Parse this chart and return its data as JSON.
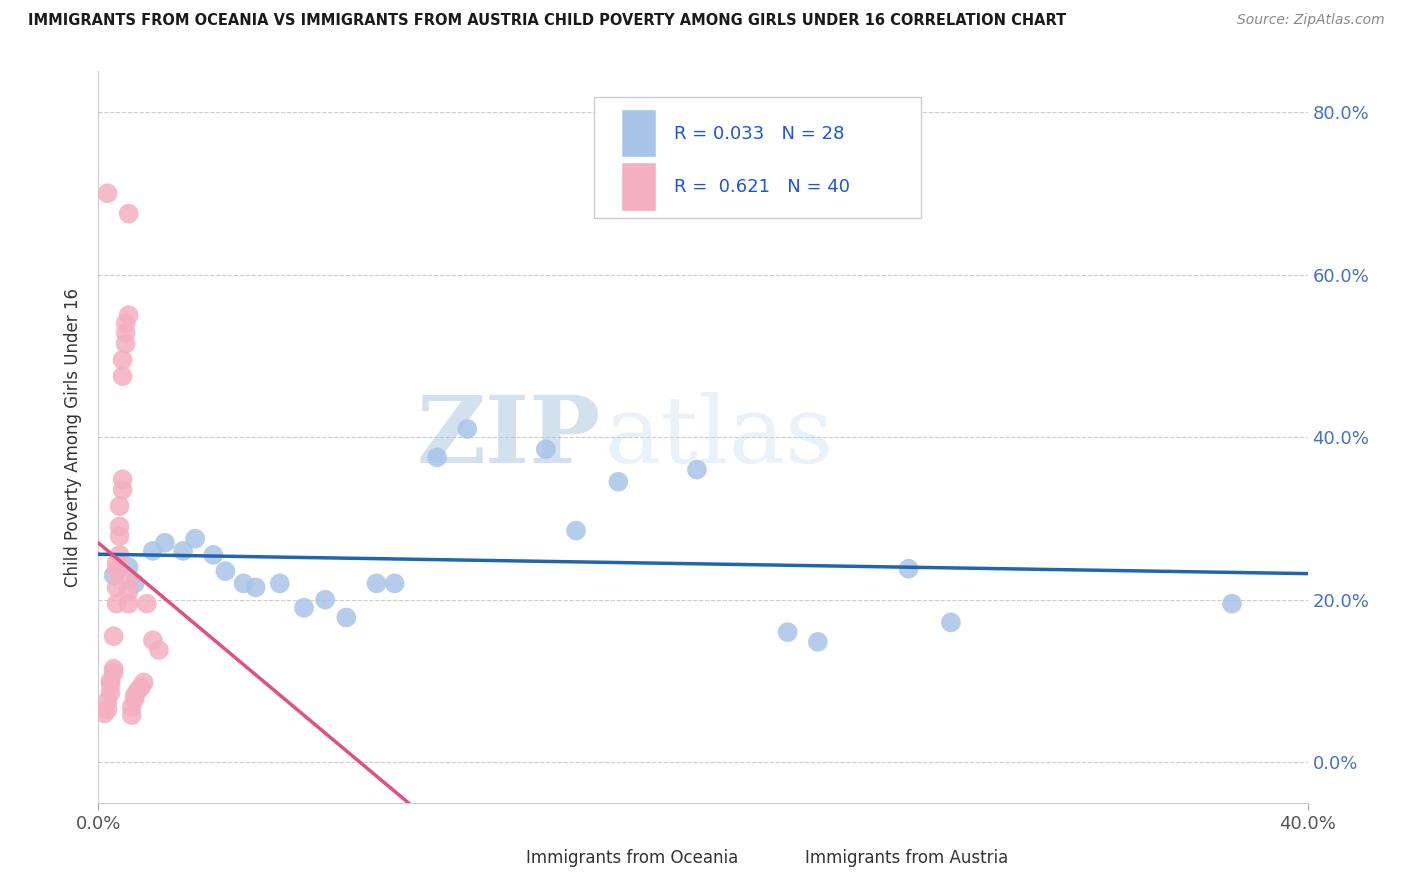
{
  "title": "IMMIGRANTS FROM OCEANIA VS IMMIGRANTS FROM AUSTRIA CHILD POVERTY AMONG GIRLS UNDER 16 CORRELATION CHART",
  "source": "Source: ZipAtlas.com",
  "ylabel": "Child Poverty Among Girls Under 16",
  "watermark_zip": "ZIP",
  "watermark_atlas": "atlas",
  "legend1_label": "R = 0.033   N = 28",
  "legend2_label": "R =  0.621   N = 40",
  "bottom_legend1": "Immigrants from Oceania",
  "bottom_legend2": "Immigrants from Austria",
  "oceania_color": "#a8c4e8",
  "austria_color": "#f4afc0",
  "oceania_line_color": "#2166ac",
  "austria_line_color": "#e05080",
  "xlim": [
    0.0,
    0.4
  ],
  "ylim": [
    -0.05,
    0.85
  ],
  "xtick_left": "0.0%",
  "xtick_right": "40.0%",
  "yticks": [
    0.0,
    0.2,
    0.4,
    0.6,
    0.8
  ],
  "oceania_scatter": [
    [
      0.005,
      0.23
    ],
    [
      0.01,
      0.24
    ],
    [
      0.012,
      0.22
    ],
    [
      0.018,
      0.26
    ],
    [
      0.022,
      0.27
    ],
    [
      0.028,
      0.26
    ],
    [
      0.032,
      0.275
    ],
    [
      0.038,
      0.255
    ],
    [
      0.042,
      0.235
    ],
    [
      0.048,
      0.22
    ],
    [
      0.052,
      0.215
    ],
    [
      0.06,
      0.22
    ],
    [
      0.068,
      0.19
    ],
    [
      0.075,
      0.2
    ],
    [
      0.082,
      0.178
    ],
    [
      0.092,
      0.22
    ],
    [
      0.098,
      0.22
    ],
    [
      0.112,
      0.375
    ],
    [
      0.122,
      0.41
    ],
    [
      0.148,
      0.385
    ],
    [
      0.158,
      0.285
    ],
    [
      0.172,
      0.345
    ],
    [
      0.198,
      0.36
    ],
    [
      0.228,
      0.16
    ],
    [
      0.238,
      0.148
    ],
    [
      0.268,
      0.238
    ],
    [
      0.282,
      0.172
    ],
    [
      0.375,
      0.195
    ]
  ],
  "austria_scatter": [
    [
      0.002,
      0.06
    ],
    [
      0.003,
      0.065
    ],
    [
      0.003,
      0.075
    ],
    [
      0.004,
      0.085
    ],
    [
      0.004,
      0.095
    ],
    [
      0.004,
      0.1
    ],
    [
      0.005,
      0.11
    ],
    [
      0.005,
      0.115
    ],
    [
      0.005,
      0.155
    ],
    [
      0.006,
      0.195
    ],
    [
      0.006,
      0.215
    ],
    [
      0.006,
      0.235
    ],
    [
      0.006,
      0.245
    ],
    [
      0.007,
      0.255
    ],
    [
      0.007,
      0.278
    ],
    [
      0.007,
      0.29
    ],
    [
      0.007,
      0.315
    ],
    [
      0.008,
      0.335
    ],
    [
      0.008,
      0.348
    ],
    [
      0.008,
      0.475
    ],
    [
      0.008,
      0.495
    ],
    [
      0.009,
      0.515
    ],
    [
      0.009,
      0.528
    ],
    [
      0.009,
      0.54
    ],
    [
      0.01,
      0.55
    ],
    [
      0.01,
      0.675
    ],
    [
      0.01,
      0.195
    ],
    [
      0.01,
      0.21
    ],
    [
      0.01,
      0.225
    ],
    [
      0.011,
      0.058
    ],
    [
      0.011,
      0.068
    ],
    [
      0.012,
      0.078
    ],
    [
      0.012,
      0.082
    ],
    [
      0.013,
      0.088
    ],
    [
      0.014,
      0.092
    ],
    [
      0.015,
      0.098
    ],
    [
      0.016,
      0.195
    ],
    [
      0.018,
      0.15
    ],
    [
      0.02,
      0.138
    ],
    [
      0.003,
      0.7
    ]
  ]
}
